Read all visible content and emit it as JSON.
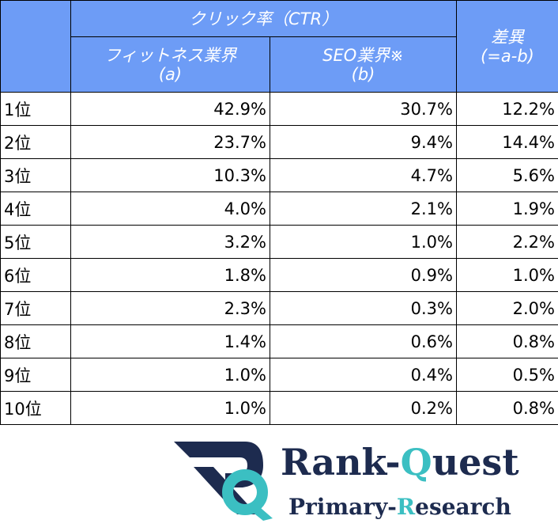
{
  "table": {
    "header": {
      "group": "クリック率（CTR）",
      "col_a": [
        "フィットネス業界",
        "(a)"
      ],
      "col_b": [
        "SEO業界※",
        "(b)"
      ],
      "col_diff": [
        "差異",
        "(=a-b)"
      ]
    },
    "rows": [
      [
        "1位",
        "42.9%",
        "30.7%",
        "12.2%"
      ],
      [
        "2位",
        "23.7%",
        "9.4%",
        "14.4%"
      ],
      [
        "3位",
        "10.3%",
        "4.7%",
        "5.6%"
      ],
      [
        "4位",
        "4.0%",
        "2.1%",
        "1.9%"
      ],
      [
        "5位",
        "3.2%",
        "1.0%",
        "2.2%"
      ],
      [
        "6位",
        "1.8%",
        "0.9%",
        "1.0%"
      ],
      [
        "7位",
        "2.3%",
        "0.3%",
        "2.0%"
      ],
      [
        "8位",
        "1.4%",
        "0.6%",
        "0.8%"
      ],
      [
        "9位",
        "1.0%",
        "0.4%",
        "0.5%"
      ],
      [
        "10位",
        "1.0%",
        "0.2%",
        "0.8%"
      ]
    ]
  },
  "logo": {
    "name_parts": [
      "Rank-",
      "Q",
      "uest"
    ],
    "tagline_parts": [
      "Primary-",
      "R",
      "esearch"
    ]
  }
}
